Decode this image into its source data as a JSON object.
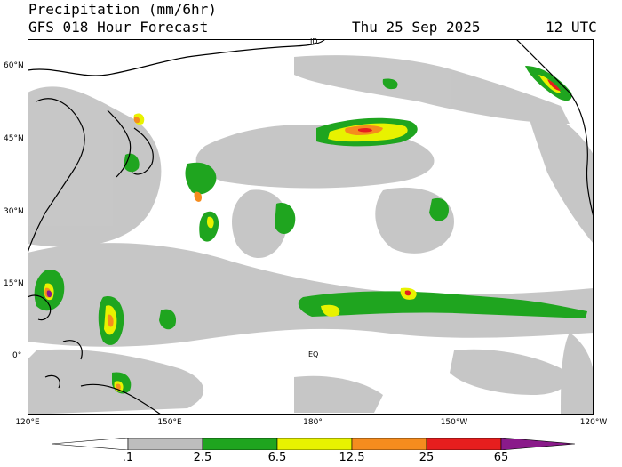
{
  "header": {
    "title": "Precipitation (mm/6hr)",
    "subtitle": "GFS 018 Hour Forecast",
    "date": "Thu 25 Sep 2025",
    "time": "12 UTC"
  },
  "map": {
    "lat_labels": [
      "60°N",
      "45°N",
      "30°N",
      "15°N",
      "0°"
    ],
    "lon_labels": [
      "120°E",
      "150°E",
      "180°",
      "150°W",
      "120°W"
    ],
    "equator_label": "EQ",
    "dateline_label": "ID"
  },
  "legend": {
    "labels": [
      ".1",
      "2.5",
      "6.5",
      "12.5",
      "25",
      "65"
    ],
    "colors": [
      "#ffffff",
      "#bdbdbd",
      "#1fa51f",
      "#e8f200",
      "#f58c1e",
      "#e61e1e",
      "#8a1a8a"
    ]
  }
}
